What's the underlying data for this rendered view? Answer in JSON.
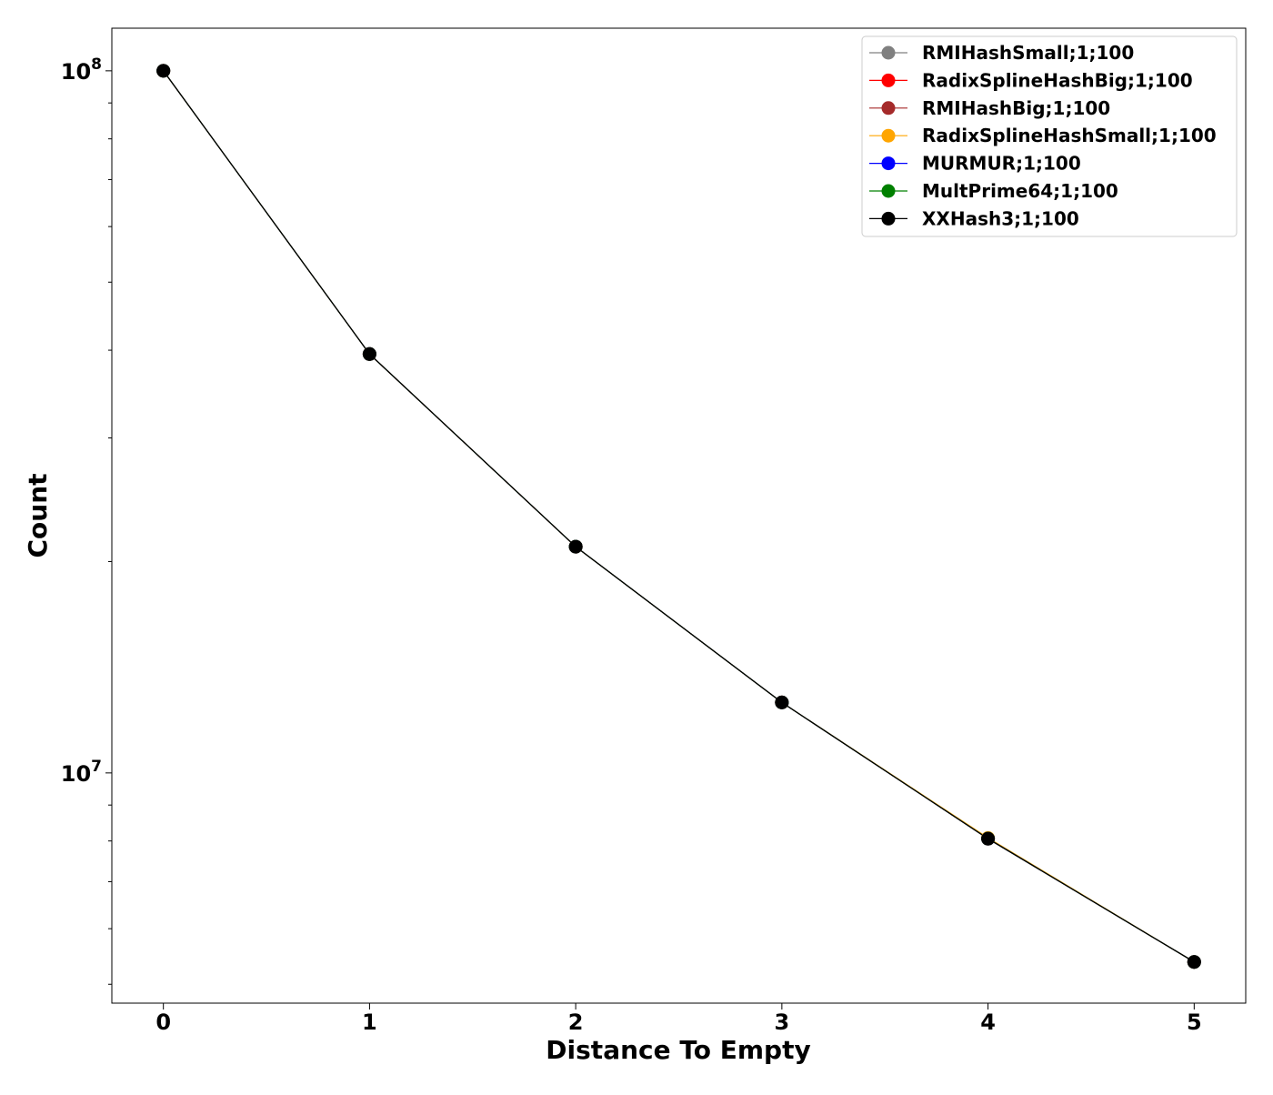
{
  "chart_data": {
    "type": "line",
    "title": "",
    "xlabel": "Distance To Empty",
    "ylabel": "Count",
    "x": [
      0,
      1,
      2,
      3,
      4,
      5
    ],
    "xlim": [
      -0.25,
      5.25
    ],
    "xticks": [
      "0",
      "1",
      "2",
      "3",
      "4",
      "5"
    ],
    "yscale": "log",
    "ylim": [
      4700000,
      115000000
    ],
    "yticks": [
      {
        "value": 10000000,
        "base": "10",
        "exp": "7"
      },
      {
        "value": 100000000,
        "base": "10",
        "exp": "8"
      }
    ],
    "yminor": [
      5000000,
      6000000,
      7000000,
      8000000,
      9000000,
      20000000,
      30000000,
      40000000,
      50000000,
      60000000,
      70000000,
      80000000,
      90000000
    ],
    "grid": false,
    "legend_position": "top-right",
    "series": [
      {
        "name": "RMIHashSmall;1;100",
        "color": "#808080",
        "values": [
          100000000,
          39500000,
          21000000,
          12600000,
          8060000,
          5380000
        ]
      },
      {
        "name": "RadixSplineHashBig;1;100",
        "color": "#ff0000",
        "values": [
          100000000,
          39500000,
          21000000,
          12600000,
          8060000,
          5380000
        ]
      },
      {
        "name": "RMIHashBig;1;100",
        "color": "#a52a2a",
        "values": [
          100000000,
          39500000,
          21000000,
          12600000,
          8060000,
          5380000
        ]
      },
      {
        "name": "RadixSplineHashSmall;1;100",
        "color": "#ffa500",
        "values": [
          100000000,
          39500000,
          21000000,
          12600000,
          8080000,
          5380000
        ]
      },
      {
        "name": "MURMUR;1;100",
        "color": "#0000ff",
        "values": [
          100000000,
          39500000,
          21000000,
          12600000,
          8060000,
          5380000
        ]
      },
      {
        "name": "MultPrime64;1;100",
        "color": "#008000",
        "values": [
          100000000,
          39500000,
          21000000,
          12600000,
          8060000,
          5380000
        ]
      },
      {
        "name": "XXHash3;1;100",
        "color": "#000000",
        "values": [
          100000000,
          39500000,
          21000000,
          12600000,
          8060000,
          5380000
        ]
      }
    ]
  }
}
